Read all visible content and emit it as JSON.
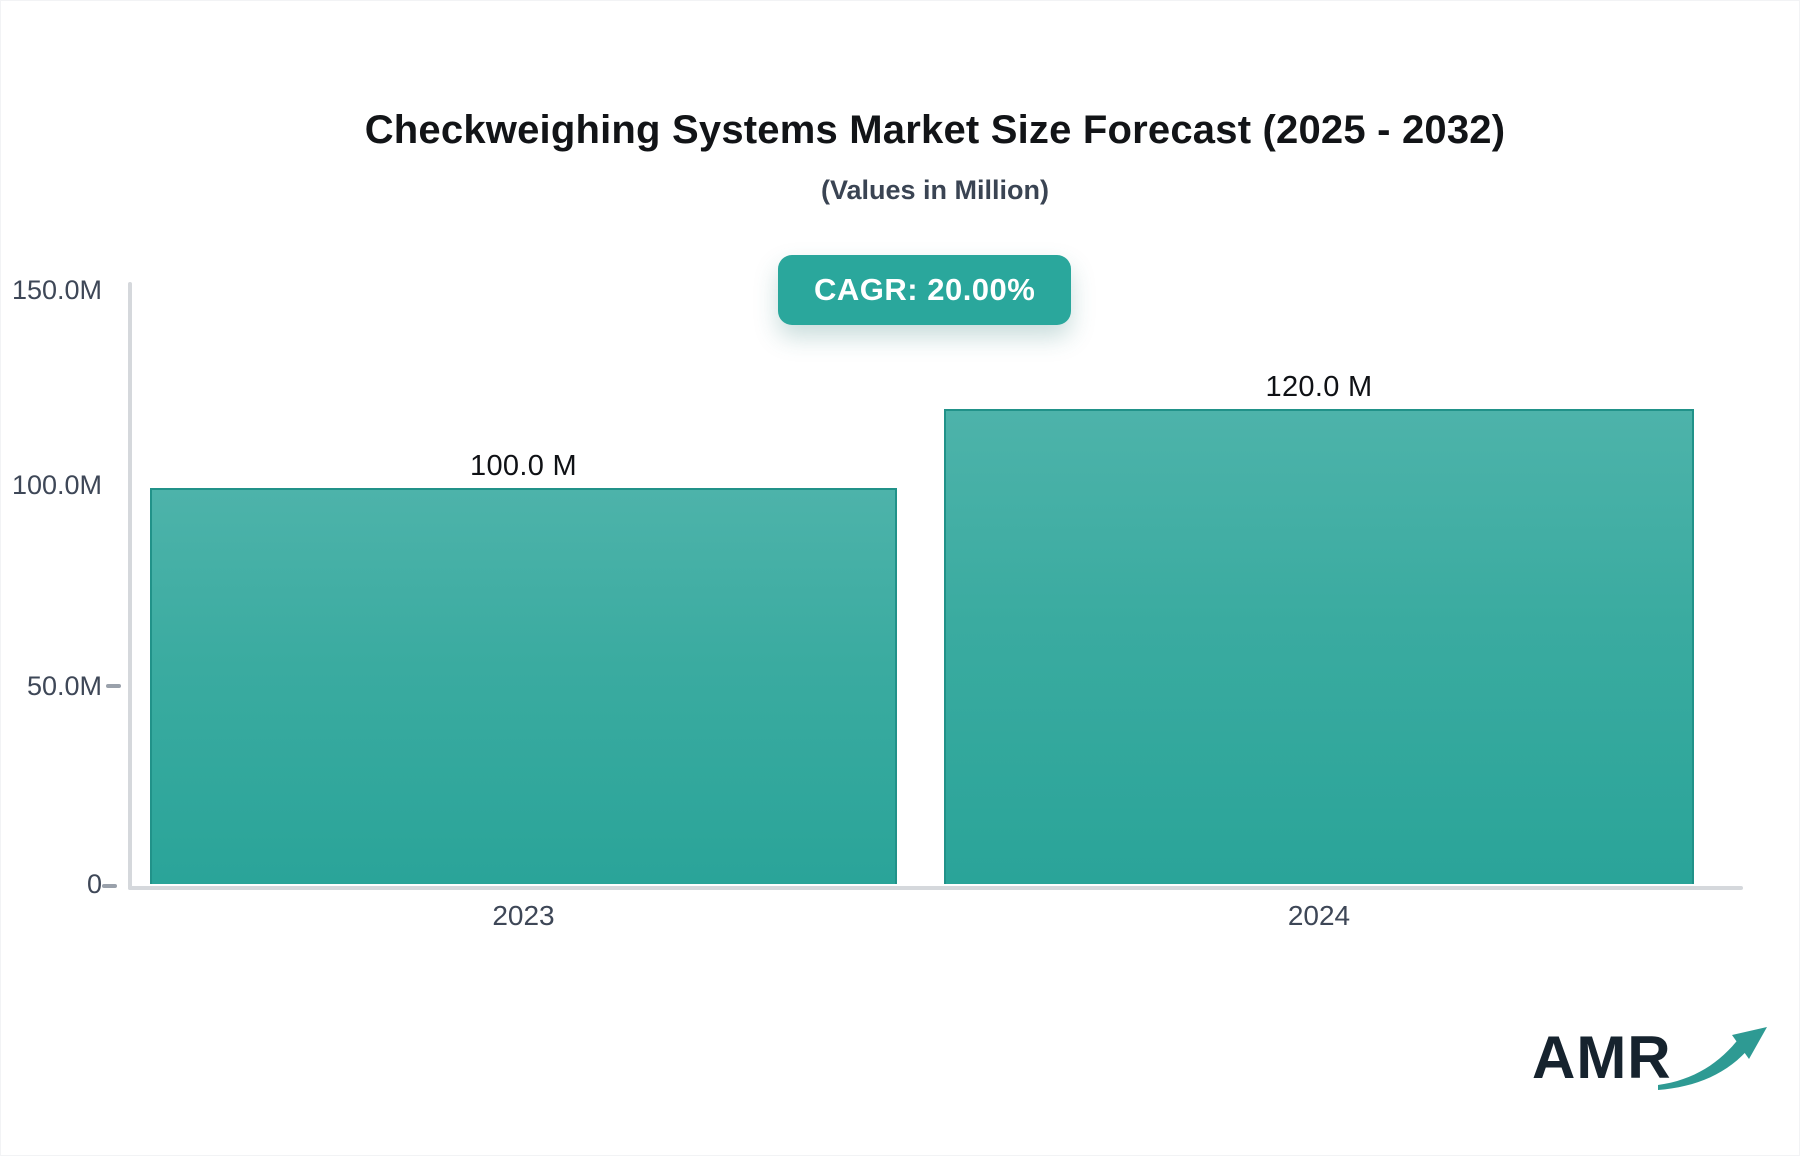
{
  "chart_data": {
    "type": "bar",
    "title": "Checkweighing Systems Market Size Forecast (2025 - 2032)",
    "subtitle": "(Values in Million)",
    "cagr_label": "CAGR: 20.00%",
    "categories": [
      "2023",
      "2024"
    ],
    "values": [
      100.0,
      120.0
    ],
    "value_labels": [
      "100.0 M",
      "120.0 M"
    ],
    "unit": "M",
    "y_ticks": [
      "150.0M",
      "100.0M",
      "50.0M",
      "0"
    ],
    "ylim": [
      0,
      150
    ],
    "xlabel": "",
    "ylabel": "",
    "grid": false,
    "legend": "none",
    "colors": {
      "bar_gradient_top": "#4db3aa",
      "bar_gradient_bottom": "#2aa499",
      "bar_edge": "#219289",
      "badge_background": "#2aa79c",
      "badge_text": "#ffffff",
      "axis_line": "#d5d8dc",
      "tick_text": "#3e4757",
      "title_text": "#121417",
      "subtitle_text": "#3a4453"
    }
  },
  "logo": {
    "text": "AMR",
    "text_color": "#16232e",
    "arrow_color": "#2e9a93"
  }
}
